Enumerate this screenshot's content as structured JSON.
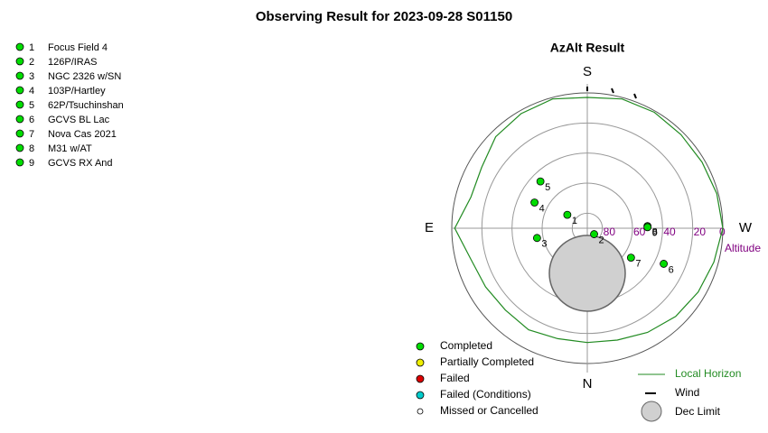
{
  "chart_data": {
    "type": "polar",
    "title": "Observing Result for 2023-09-28 S01150",
    "subtitle": "AzAlt Result",
    "compass": [
      "N",
      "E",
      "S",
      "W"
    ],
    "rlim": [
      90,
      0
    ],
    "rticks": [
      80,
      60,
      40,
      20,
      0
    ],
    "r_label": "Altitude",
    "targets": [
      {
        "id": 1,
        "name": "Focus Field 4",
        "az": 124,
        "alt": 74,
        "status": "Completed"
      },
      {
        "id": 2,
        "name": "126P/IRAS",
        "az": 311,
        "alt": 84,
        "status": "Completed"
      },
      {
        "id": 3,
        "name": "NGC 2326 w/SN",
        "az": 79,
        "alt": 56,
        "status": "Completed"
      },
      {
        "id": 4,
        "name": "103P/Hartley",
        "az": 116,
        "alt": 51,
        "status": "Completed"
      },
      {
        "id": 5,
        "name": "62P/Tsuchinshan",
        "az": 135,
        "alt": 46,
        "status": "Completed"
      },
      {
        "id": 6,
        "name": "GCVS BL Lac",
        "az": 295,
        "alt": 34,
        "status": "Completed"
      },
      {
        "id": 7,
        "name": "Nova Cas 2021",
        "az": 304,
        "alt": 55,
        "status": "Completed"
      },
      {
        "id": 8,
        "name": "M31 w/AT",
        "az": 268,
        "alt": 50,
        "status": "Completed"
      },
      {
        "id": 9,
        "name": "GCVS RX And",
        "az": 269,
        "alt": 50,
        "status": "Completed"
      }
    ],
    "statuses": [
      {
        "name": "Completed",
        "color": "#00dd00"
      },
      {
        "name": "Partially Completed",
        "color": "#eeee00"
      },
      {
        "name": "Failed",
        "color": "#dd0000"
      },
      {
        "name": "Failed (Conditions)",
        "color": "#00cccc"
      },
      {
        "name": "Missed or Cancelled",
        "color": "#ffffff"
      }
    ],
    "horizon": {
      "name": "Local Horizon",
      "color": "#228b22",
      "az": [
        0,
        15,
        30,
        45,
        60,
        75,
        90,
        105,
        120,
        135,
        150,
        165,
        180,
        195,
        210,
        225,
        240,
        255,
        270,
        285,
        300,
        315,
        330,
        345,
        360
      ],
      "alt": [
        14,
        14,
        12,
        13,
        12,
        10,
        2,
        10,
        9,
        4,
        2,
        1,
        3,
        1,
        1,
        2,
        2,
        1,
        0,
        3,
        5,
        7,
        10,
        13,
        14
      ]
    },
    "wind_label": "Wind",
    "dec_limit_label": "Dec Limit"
  }
}
